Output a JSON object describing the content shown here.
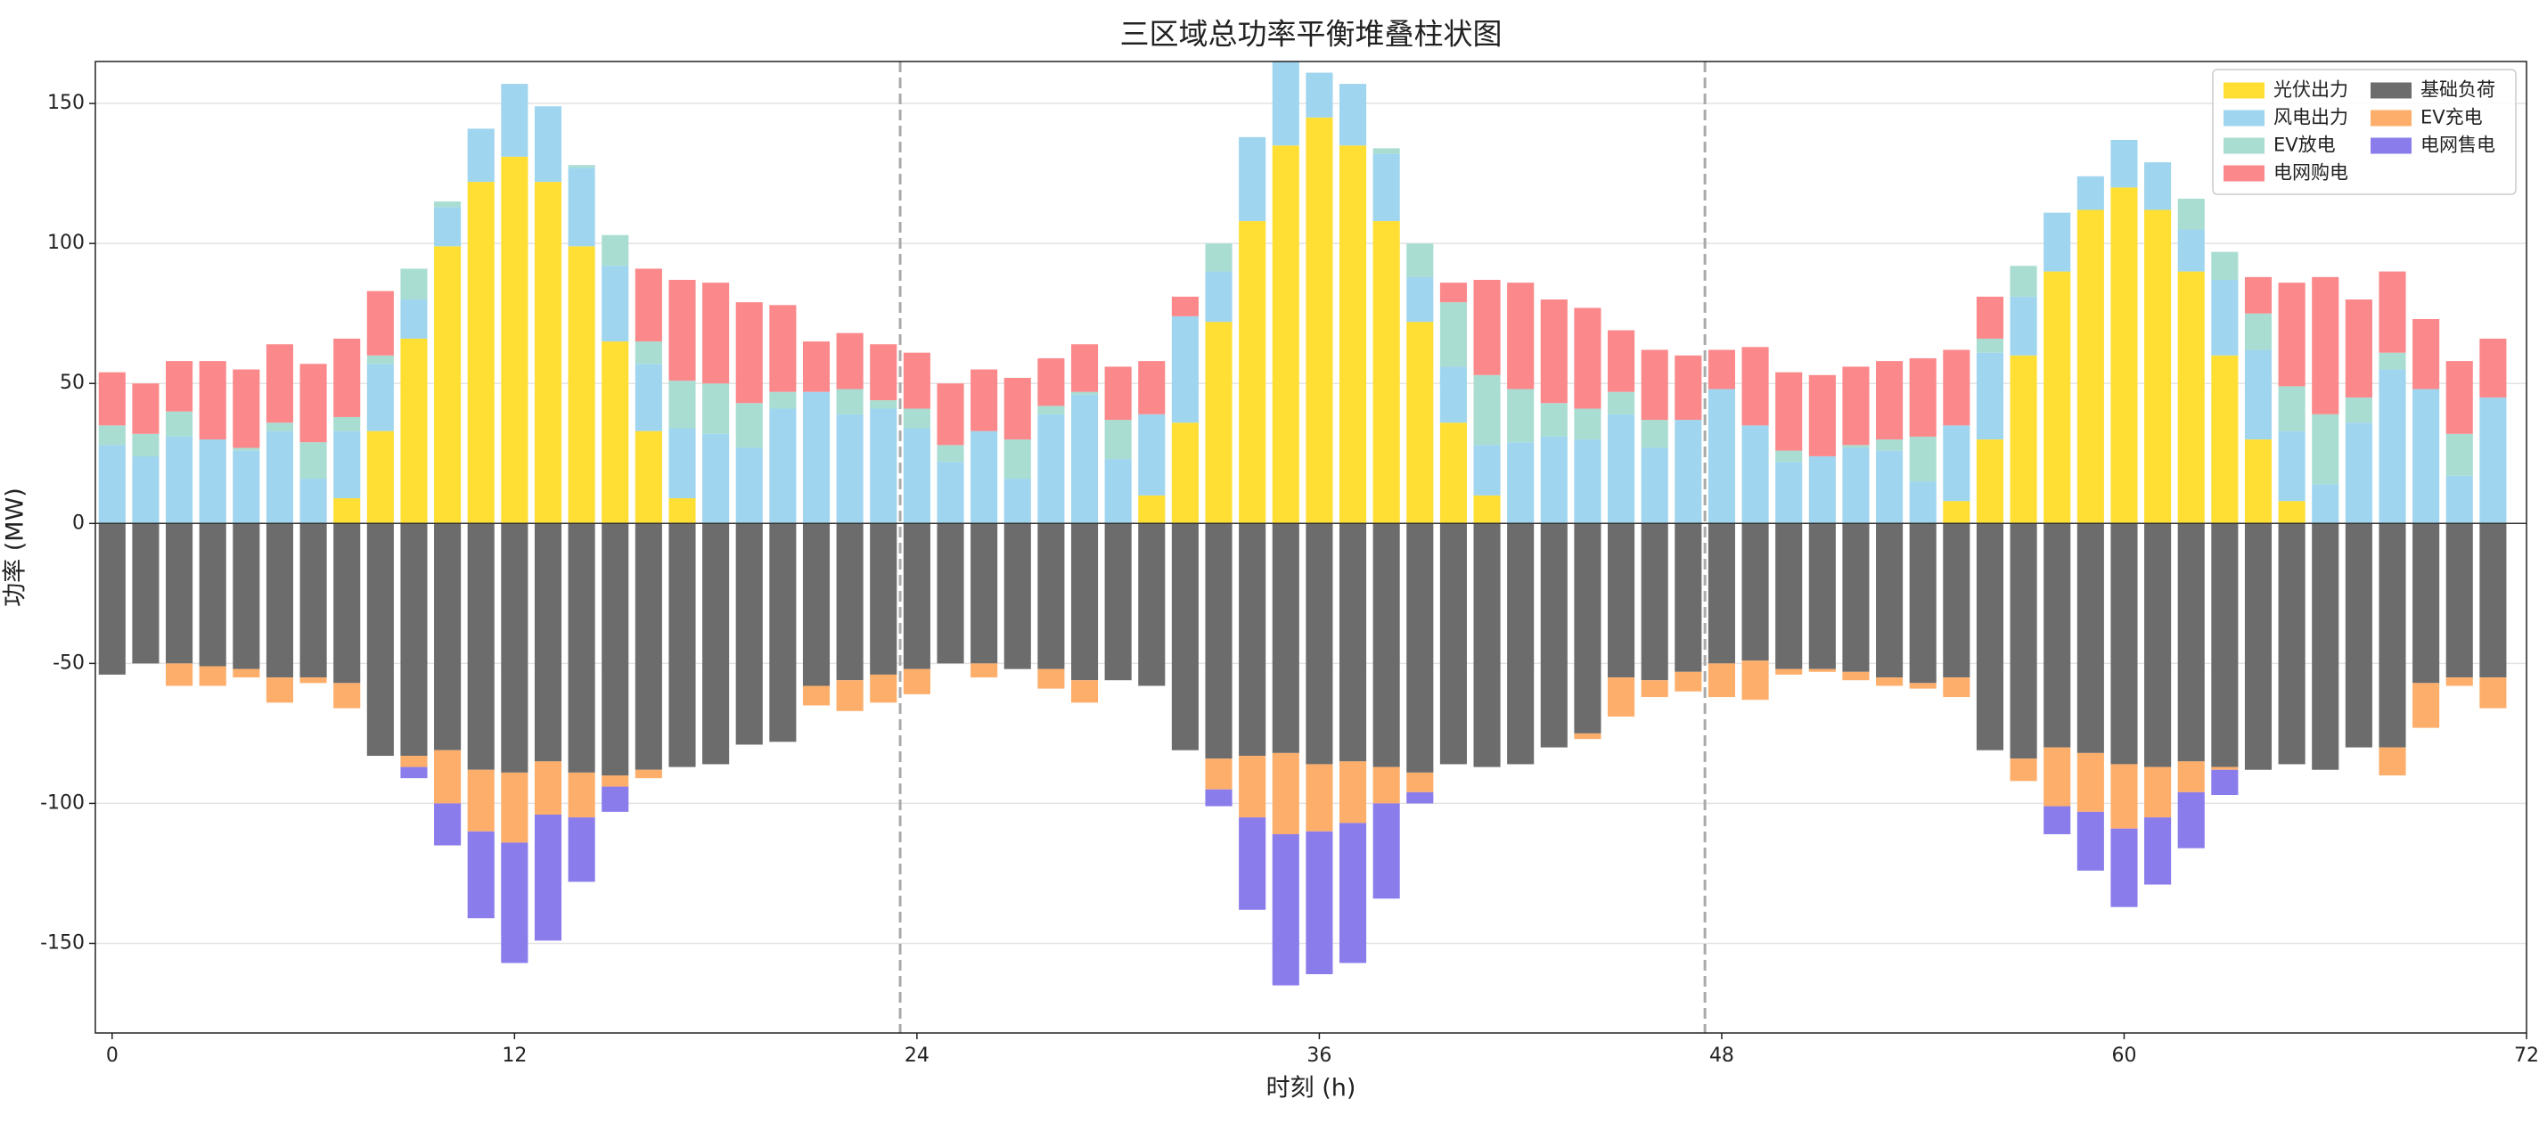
{
  "chart_data": {
    "type": "stacked_bar",
    "title": "三区域总功率平衡堆叠柱状图",
    "xlabel": "时刻 (h)",
    "ylabel": "功率 (MW)",
    "x": [
      0,
      1,
      2,
      3,
      4,
      5,
      6,
      7,
      8,
      9,
      10,
      11,
      12,
      13,
      14,
      15,
      16,
      17,
      18,
      19,
      20,
      21,
      22,
      23,
      24,
      25,
      26,
      27,
      28,
      29,
      30,
      31,
      32,
      33,
      34,
      35,
      36,
      37,
      38,
      39,
      40,
      41,
      42,
      43,
      44,
      45,
      46,
      47,
      48,
      49,
      50,
      51,
      52,
      53,
      54,
      55,
      56,
      57,
      58,
      59,
      60,
      61,
      62,
      63,
      64,
      65,
      66,
      67,
      68,
      69,
      70,
      71
    ],
    "xlim": [
      -0.5,
      72
    ],
    "xticks": [
      0,
      12,
      24,
      36,
      48,
      60,
      72
    ],
    "ylim": [
      -182,
      165
    ],
    "yticks": [
      -150,
      -100,
      -50,
      0,
      50,
      100,
      150
    ],
    "grid": true,
    "vlines": [
      23.5,
      47.5
    ],
    "legend": "upper right",
    "series": [
      {
        "name": "光伏出力",
        "color": "#ffdf33",
        "values": [
          0,
          0,
          0,
          0,
          0,
          0,
          0,
          9,
          33,
          66,
          99,
          122,
          131,
          122,
          99,
          65,
          33,
          9,
          0,
          0,
          0,
          0,
          0,
          0,
          0,
          0,
          0,
          0,
          0,
          0,
          0,
          10,
          36,
          72,
          108,
          135,
          145,
          135,
          108,
          72,
          36,
          10,
          0,
          0,
          0,
          0,
          0,
          0,
          0,
          0,
          0,
          0,
          0,
          0,
          0,
          8,
          30,
          60,
          90,
          112,
          120,
          112,
          90,
          60,
          30,
          8,
          0,
          0,
          0,
          0,
          0,
          0
        ]
      },
      {
        "name": "风电出力",
        "color": "#9fd5ee",
        "values": [
          28,
          24,
          31,
          30,
          26,
          33,
          16,
          24,
          24,
          14,
          14,
          19,
          26,
          27,
          28,
          27,
          24,
          25,
          32,
          27,
          41,
          47,
          39,
          41,
          34,
          22,
          33,
          16,
          39,
          46,
          23,
          29,
          38,
          18,
          30,
          30,
          16,
          22,
          24,
          16,
          20,
          18,
          29,
          31,
          30,
          39,
          27,
          37,
          48,
          35,
          22,
          24,
          27,
          26,
          15,
          27,
          31,
          21,
          21,
          12,
          17,
          17,
          15,
          27,
          32,
          25,
          14,
          36,
          55,
          48,
          17,
          45
        ]
      },
      {
        "name": "EV放电",
        "color": "#a9ddd2",
        "values": [
          7,
          8,
          9,
          0,
          1,
          3,
          13,
          5,
          3,
          11,
          2,
          0,
          0,
          0,
          1,
          11,
          8,
          17,
          18,
          16,
          6,
          0,
          9,
          3,
          7,
          6,
          0,
          14,
          3,
          1,
          14,
          0,
          0,
          10,
          0,
          0,
          0,
          0,
          2,
          12,
          23,
          25,
          19,
          12,
          11,
          8,
          10,
          0,
          0,
          0,
          4,
          0,
          1,
          4,
          16,
          0,
          5,
          11,
          0,
          0,
          0,
          0,
          11,
          10,
          13,
          16,
          25,
          9,
          6,
          0,
          15,
          0
        ]
      },
      {
        "name": "电网购电",
        "color": "#fb888b",
        "values": [
          19,
          18,
          18,
          28,
          28,
          28,
          28,
          28,
          23,
          0,
          0,
          0,
          0,
          0,
          0,
          0,
          26,
          36,
          36,
          36,
          31,
          18,
          20,
          20,
          20,
          22,
          22,
          22,
          17,
          17,
          19,
          19,
          7,
          0,
          0,
          0,
          0,
          0,
          0,
          0,
          7,
          34,
          38,
          37,
          36,
          22,
          25,
          23,
          14,
          28,
          28,
          29,
          28,
          28,
          28,
          27,
          15,
          0,
          0,
          0,
          0,
          0,
          0,
          0,
          13,
          37,
          49,
          35,
          29,
          25,
          26,
          21
        ]
      },
      {
        "name": "基础负荷",
        "color": "#6c6c6c",
        "values": [
          -54,
          -50,
          -50,
          -51,
          -52,
          -55,
          -55,
          -57,
          -83,
          -83,
          -81,
          -88,
          -89,
          -85,
          -89,
          -90,
          -88,
          -87,
          -86,
          -79,
          -78,
          -58,
          -56,
          -54,
          -52,
          -50,
          -50,
          -52,
          -52,
          -56,
          -56,
          -58,
          -81,
          -84,
          -83,
          -82,
          -86,
          -85,
          -87,
          -89,
          -86,
          -87,
          -86,
          -80,
          -75,
          -55,
          -56,
          -53,
          -50,
          -49,
          -52,
          -52,
          -53,
          -55,
          -57,
          -55,
          -81,
          -84,
          -80,
          -82,
          -86,
          -87,
          -85,
          -87,
          -88,
          -86,
          -88,
          -80,
          -80,
          -57,
          -55,
          -55
        ]
      },
      {
        "name": "EV充电",
        "color": "#fdae6b",
        "values": [
          0,
          0,
          -8,
          -7,
          -3,
          -9,
          -2,
          -9,
          0,
          -4,
          -19,
          -22,
          -25,
          -19,
          -16,
          -4,
          -3,
          0,
          0,
          0,
          0,
          -7,
          -11,
          -10,
          -9,
          0,
          -5,
          0,
          -7,
          -8,
          0,
          0,
          0,
          -11,
          -22,
          -29,
          -24,
          -22,
          -13,
          -7,
          0,
          0,
          0,
          0,
          -2,
          -14,
          -6,
          -7,
          -12,
          -14,
          -2,
          -1,
          -3,
          -3,
          -2,
          -7,
          0,
          -8,
          -21,
          -21,
          -23,
          -18,
          -11,
          -1,
          0,
          0,
          0,
          0,
          -10,
          -16,
          -3,
          -11
        ]
      },
      {
        "name": "电网售电",
        "color": "#8a7ceb",
        "values": [
          0,
          0,
          0,
          0,
          0,
          0,
          0,
          0,
          0,
          -4,
          -15,
          -31,
          -43,
          -45,
          -23,
          -9,
          0,
          0,
          0,
          0,
          0,
          0,
          0,
          0,
          0,
          0,
          0,
          0,
          0,
          0,
          0,
          0,
          0,
          -6,
          -33,
          -54,
          -51,
          -50,
          -34,
          -4,
          0,
          0,
          0,
          0,
          0,
          0,
          0,
          0,
          0,
          0,
          0,
          0,
          0,
          0,
          0,
          0,
          0,
          0,
          -10,
          -21,
          -28,
          -24,
          -20,
          -9,
          0,
          0,
          0,
          0,
          0,
          0,
          0,
          0
        ]
      }
    ]
  }
}
